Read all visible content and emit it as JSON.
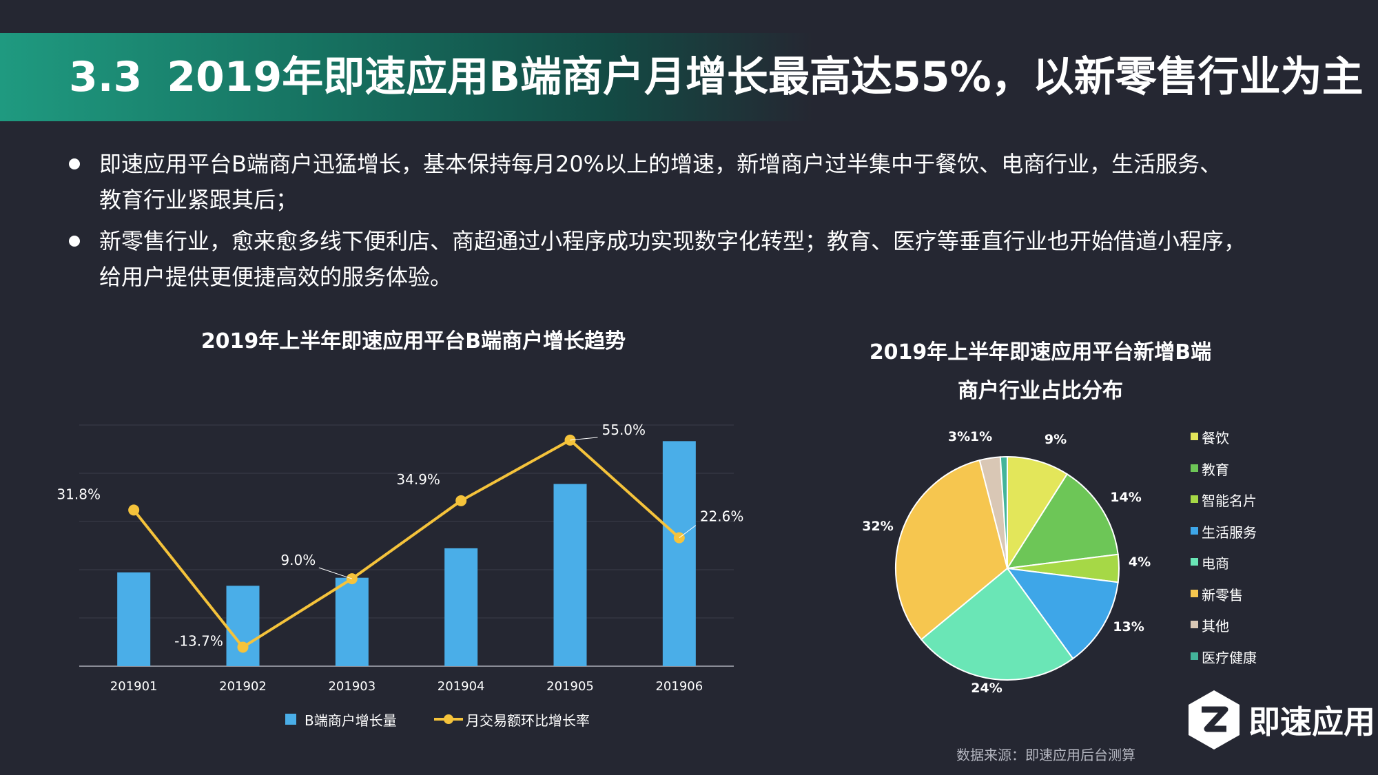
{
  "header": {
    "section_number": "3.3",
    "title": "2019年即速应用B端商户月增长最高达55%，以新零售行业为主"
  },
  "bullets": [
    {
      "line1": "即速应用平台B端商户迅猛增长，基本保持每月20%以上的增速，新增商户过半集中于餐饮、电商行业，生活服务、",
      "line2": "教育行业紧跟其后；"
    },
    {
      "line1": "新零售行业，愈来愈多线下便利店、商超通过小程序成功实现数字化转型；教育、医疗等垂直行业也开始借道小程序，",
      "line2": "给用户提供更便捷高效的服务体验。"
    }
  ],
  "chart_data": [
    {
      "type": "bar",
      "title": "2019年上半年即速应用平台B端商户增长趋势",
      "categories": [
        "201901",
        "201902",
        "201903",
        "201904",
        "201905",
        "201906"
      ],
      "series": [
        {
          "name": "B端商户增长量",
          "type": "bar",
          "color": "#4aaee8",
          "values": [
            1.75,
            1.5,
            1.65,
            2.2,
            3.4,
            4.2
          ]
        },
        {
          "name": "月交易额环比增长率",
          "type": "line",
          "color": "#f5c33b",
          "values": [
            31.8,
            -13.7,
            9.0,
            34.9,
            55.0,
            22.6
          ],
          "labels": [
            "31.8%",
            "-13.7%",
            "9.0%",
            "34.9%",
            "55.0%",
            "22.6%"
          ]
        }
      ],
      "grid": true,
      "legend": "bottom"
    },
    {
      "type": "pie",
      "title_line1": "2019年上半年即速应用平台新增B端",
      "title_line2": "商户行业占比分布",
      "slices": [
        {
          "name": "餐饮",
          "value": 9,
          "label": "9%",
          "color": "#e3e65a"
        },
        {
          "name": "教育",
          "value": 14,
          "label": "14%",
          "color": "#6dc657"
        },
        {
          "name": "智能名片",
          "value": 4,
          "label": "4%",
          "color": "#a6d846"
        },
        {
          "name": "生活服务",
          "value": 13,
          "label": "13%",
          "color": "#3ea6e8"
        },
        {
          "name": "电商",
          "value": 24,
          "label": "24%",
          "color": "#6ae6b6"
        },
        {
          "name": "新零售",
          "value": 32,
          "label": "32%",
          "color": "#f6c64f"
        },
        {
          "name": "其他",
          "value": 3,
          "label": "3%",
          "color": "#d9c7b5"
        },
        {
          "name": "医疗健康",
          "value": 1,
          "label": "1%",
          "color": "#43b49a"
        }
      ],
      "legend": "right"
    }
  ],
  "source": "数据来源：即速应用后台测算",
  "logo": {
    "text": "即速应用",
    "icon": "jisu-logo-icon"
  }
}
